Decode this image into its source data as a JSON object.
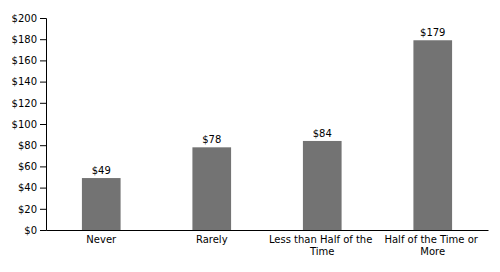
{
  "chart_data": {
    "type": "bar",
    "categories": [
      "Never",
      "Rarely",
      "Less than Half of the Time",
      "Half of the Time or More"
    ],
    "values": [
      49,
      78,
      84,
      179
    ],
    "value_labels": [
      "$49",
      "$78",
      "$84",
      "$179"
    ],
    "data_labels": true,
    "color": "#737373",
    "ylim": [
      0,
      200
    ],
    "yticks": [
      {
        "value": 0,
        "label": "$0"
      },
      {
        "value": 20,
        "label": "$20"
      },
      {
        "value": 40,
        "label": "$40"
      },
      {
        "value": 60,
        "label": "$60"
      },
      {
        "value": 80,
        "label": "$80"
      },
      {
        "value": 100,
        "label": "$100"
      },
      {
        "value": 120,
        "label": "$120"
      },
      {
        "value": 140,
        "label": "$140"
      },
      {
        "value": 160,
        "label": "$160"
      },
      {
        "value": 180,
        "label": "$180"
      },
      {
        "value": 200,
        "label": "$200"
      }
    ],
    "grid": false
  }
}
